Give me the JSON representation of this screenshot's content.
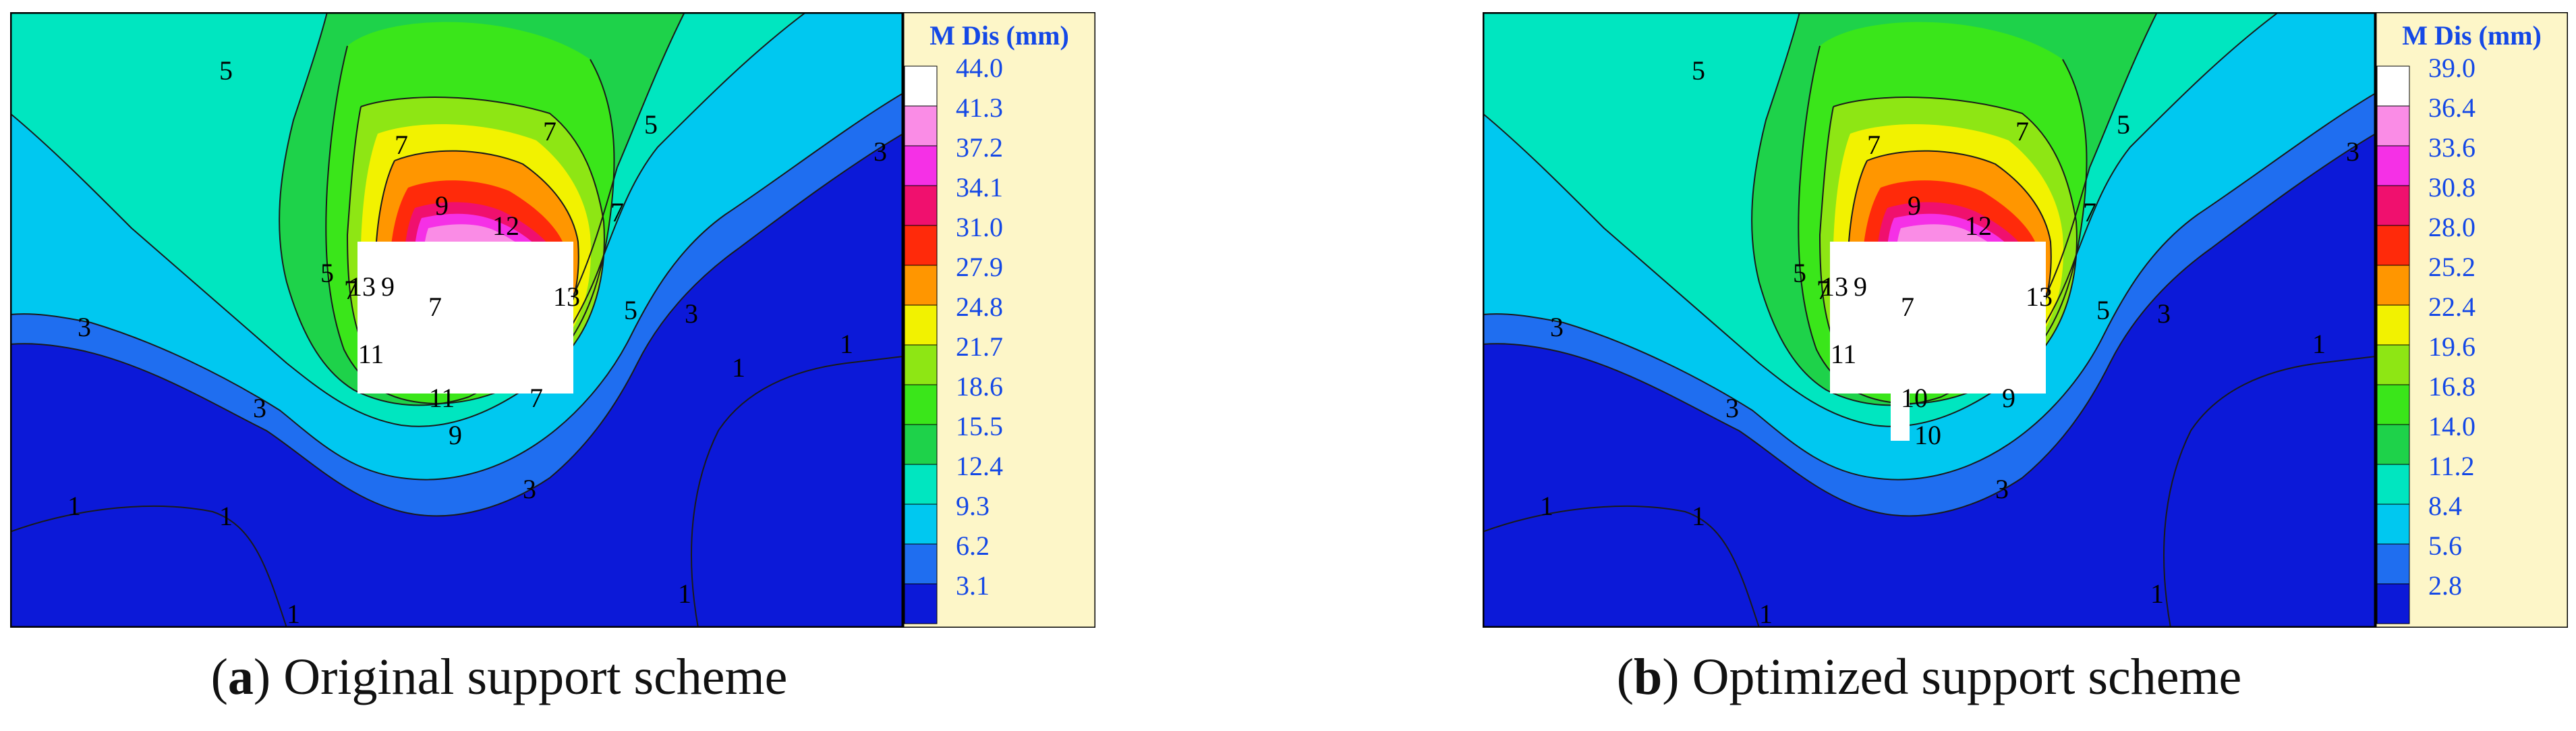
{
  "colors": {
    "legend_background": "#fdf6c8",
    "legend_text": "#1448e6",
    "contour_line": "#1a1a1a",
    "bands": [
      "#0c19d8",
      "#1f6ef0",
      "#00c8f0",
      "#00e6c0",
      "#1ed24a",
      "#3ae61a",
      "#8ee614",
      "#f2f200",
      "#ff9600",
      "#ff2a0a",
      "#f0106e",
      "#f530e6",
      "#fa8ce6",
      "#ffffff"
    ],
    "excavation": "#ffffff"
  },
  "chart_data": [
    {
      "type": "heatmap",
      "caption_letter": "a",
      "caption_text": "Original support scheme",
      "colorbar_title": "M Dis (mm)",
      "colorbar_values": [
        "44.0",
        "41.3",
        "37.2",
        "34.1",
        "31.0",
        "27.9",
        "24.8",
        "21.7",
        "18.6",
        "15.5",
        "12.4",
        "9.3",
        "6.2",
        "3.1"
      ],
      "contour_labels": [
        "5",
        "5",
        "5",
        "5",
        "7",
        "7",
        "7",
        "7",
        "7",
        "7",
        "9",
        "9",
        "9",
        "11",
        "12",
        "13",
        "13",
        "11",
        "3",
        "3",
        "3",
        "3",
        "3",
        "1",
        "1",
        "1",
        "1",
        "1",
        "1"
      ]
    },
    {
      "type": "heatmap",
      "caption_letter": "b",
      "caption_text": "Optimized support scheme",
      "colorbar_title": "M Dis (mm)",
      "colorbar_values": [
        "39.0",
        "36.4",
        "33.6",
        "30.8",
        "28.0",
        "25.2",
        "22.4",
        "19.6",
        "16.8",
        "14.0",
        "11.2",
        "8.4",
        "5.6",
        "2.8"
      ],
      "contour_labels": [
        "5",
        "5",
        "5",
        "5",
        "7",
        "7",
        "7",
        "7",
        "7",
        "9",
        "9",
        "9",
        "10",
        "10",
        "12",
        "13",
        "13",
        "11",
        "3",
        "3",
        "3",
        "3",
        "3",
        "1",
        "1",
        "1",
        "1",
        "1"
      ]
    }
  ]
}
